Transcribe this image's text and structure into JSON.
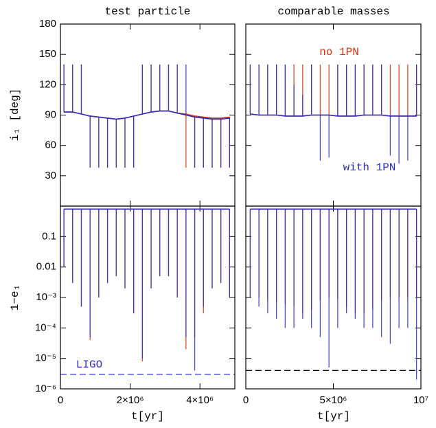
{
  "chart_data": [
    {
      "type": "line",
      "title": "test particle",
      "ylabel": "i₁ [deg]",
      "xlim": [
        0,
        5000000
      ],
      "ylim": [
        0,
        180
      ],
      "yticks": [
        30,
        60,
        90,
        120,
        150,
        180
      ],
      "x": [
        100000,
        350000,
        600000,
        850000,
        1100000,
        1350000,
        1600000,
        1850000,
        2100000,
        2350000,
        2600000,
        2850000,
        3100000,
        3350000,
        3600000,
        3850000,
        4100000,
        4350000,
        4600000,
        4850000
      ],
      "series": [
        {
          "color": "#d03010",
          "values": [
            93,
            93,
            91,
            89,
            88,
            87,
            86,
            87,
            89,
            91,
            93,
            94,
            94,
            92,
            91,
            89,
            88,
            87,
            87,
            88
          ],
          "peaks": [
            140,
            140,
            140,
            38,
            38,
            38,
            38,
            38,
            38,
            140,
            140,
            140,
            140,
            140,
            38,
            38,
            38,
            38,
            38,
            38
          ]
        },
        {
          "color": "#3030c0",
          "values": [
            93,
            93,
            91,
            89,
            88,
            87,
            86,
            87,
            89,
            91,
            93,
            94,
            94,
            92,
            90,
            88,
            87,
            86,
            86,
            87
          ],
          "peaks": [
            140,
            140,
            140,
            38,
            38,
            38,
            38,
            38,
            38,
            140,
            140,
            140,
            140,
            140,
            140,
            38,
            38,
            38,
            38,
            38
          ]
        }
      ]
    },
    {
      "type": "line",
      "title": "comparable masses",
      "xlim": [
        0,
        10000000
      ],
      "ylim": [
        0,
        180
      ],
      "x": [
        250000,
        750000,
        1250000,
        1750000,
        2250000,
        2750000,
        3250000,
        3750000,
        4250000,
        4750000,
        5250000,
        5750000,
        6250000,
        6750000,
        7250000,
        7750000,
        8250000,
        8750000,
        9250000,
        9750000
      ],
      "series": [
        {
          "name": "no 1PN",
          "color": "#d03010",
          "values": [
            91,
            90,
            90,
            90,
            89,
            89,
            89,
            90,
            90,
            90,
            89,
            89,
            89,
            90,
            90,
            90,
            89,
            89,
            89,
            89
          ],
          "peaks": [
            140,
            140,
            140,
            140,
            140,
            140,
            140,
            140,
            140,
            140,
            140,
            140,
            140,
            140,
            140,
            140,
            140,
            140,
            140,
            140
          ]
        },
        {
          "name": "with 1PN",
          "color": "#3030c0",
          "values": [
            91,
            90,
            90,
            90,
            89,
            89,
            89,
            90,
            90,
            90,
            89,
            89,
            89,
            90,
            90,
            90,
            89,
            89,
            89,
            89
          ],
          "peaks": [
            140,
            140,
            140,
            140,
            140,
            120,
            110,
            140,
            45,
            48,
            140,
            140,
            140,
            140,
            140,
            140,
            50,
            42,
            45,
            140
          ]
        }
      ]
    },
    {
      "type": "line",
      "ylabel": "1−e₁",
      "xlabel": "t[yr]",
      "log_y": true,
      "xlim": [
        0,
        5000000
      ],
      "xticks": [
        0,
        {
          "value": 2000000,
          "label": "2×10⁶"
        },
        {
          "value": 4000000,
          "label": "4×10⁶"
        }
      ],
      "ylim": [
        1e-06,
        1
      ],
      "yticks": [
        0.1,
        0.01,
        {
          "value": 0.001,
          "label": "10⁻³"
        },
        {
          "value": 0.0001,
          "label": "10⁻⁴"
        },
        {
          "value": 1e-05,
          "label": "10⁻⁵"
        },
        {
          "value": 1e-06,
          "label": "10⁻⁶"
        }
      ],
      "x": [
        100000,
        350000,
        600000,
        850000,
        1100000,
        1350000,
        1600000,
        1850000,
        2100000,
        2350000,
        2600000,
        2850000,
        3100000,
        3350000,
        3600000,
        3850000,
        4100000,
        4350000,
        4600000,
        4850000
      ],
      "series": [
        {
          "color": "#d03010",
          "values": [
            0.8,
            0.8,
            0.8,
            0.8,
            0.8,
            0.8,
            0.8,
            0.8,
            0.8,
            0.8,
            0.8,
            0.8,
            0.8,
            0.8,
            0.8,
            0.8,
            0.8,
            0.8,
            0.8,
            0.8
          ],
          "peaks": [
            0.01,
            0.003,
            0.0005,
            4e-05,
            0.001,
            0.003,
            0.005,
            0.002,
            0.0003,
            8e-06,
            0.002,
            0.005,
            0.005,
            0.001,
            2e-05,
            5e-05,
            0.0003,
            0.002,
            0.003,
            0.001
          ]
        },
        {
          "color": "#3030c0",
          "values": [
            0.8,
            0.8,
            0.8,
            0.8,
            0.8,
            0.8,
            0.8,
            0.8,
            0.8,
            0.8,
            0.8,
            0.8,
            0.8,
            0.8,
            0.8,
            0.8,
            0.8,
            0.8,
            0.8,
            0.8
          ],
          "peaks": [
            0.01,
            0.003,
            0.0005,
            5e-05,
            0.001,
            0.003,
            0.005,
            0.002,
            0.0003,
            1e-05,
            0.002,
            0.005,
            0.005,
            0.001,
            5e-05,
            4e-06,
            0.0005,
            0.002,
            0.003,
            0.001
          ]
        }
      ],
      "hlines": [
        {
          "value": 3e-06,
          "color": "#3030c0",
          "label": "LIGO"
        }
      ]
    },
    {
      "type": "line",
      "xlabel": "t[yr]",
      "log_y": true,
      "xlim": [
        0,
        10000000
      ],
      "xticks": [
        0,
        {
          "value": 5000000,
          "label": "5×10⁶"
        },
        {
          "value": 10000000,
          "label": "10⁷"
        }
      ],
      "ylim": [
        1e-06,
        1
      ],
      "x": [
        250000,
        750000,
        1250000,
        1750000,
        2250000,
        2750000,
        3250000,
        3750000,
        4250000,
        4750000,
        5250000,
        5750000,
        6250000,
        6750000,
        7250000,
        7750000,
        8250000,
        8750000,
        9250000,
        9750000
      ],
      "series": [
        {
          "color": "#d03010",
          "values": [
            0.8,
            0.8,
            0.8,
            0.8,
            0.8,
            0.8,
            0.8,
            0.8,
            0.8,
            0.8,
            0.8,
            0.8,
            0.8,
            0.8,
            0.8,
            0.8,
            0.8,
            0.8,
            0.8,
            0.8
          ],
          "peaks": [
            0.001,
            0.001,
            0.0008,
            0.0007,
            0.0006,
            0.0005,
            0.0003,
            0.0004,
            0.0008,
            0.001,
            0.0009,
            0.0005,
            0.0003,
            0.0003,
            0.0004,
            0.0008,
            0.001,
            0.001,
            0.001,
            0.001
          ]
        },
        {
          "color": "#3030c0",
          "values": [
            0.8,
            0.8,
            0.8,
            0.8,
            0.8,
            0.8,
            0.8,
            0.8,
            0.8,
            0.8,
            0.8,
            0.8,
            0.8,
            0.8,
            0.8,
            0.8,
            0.8,
            0.8,
            0.8,
            0.8
          ],
          "peaks": [
            0.001,
            0.0005,
            0.0003,
            0.0002,
            0.0001,
            0.0001,
            0.0002,
            0.0001,
            5e-05,
            5e-06,
            0.0001,
            0.0003,
            0.0002,
            0.0001,
            0.0001,
            5e-05,
            3e-05,
            0.0001,
            0.0001,
            2e-06
          ]
        }
      ],
      "hlines": [
        {
          "value": 4e-06,
          "color": "#000000"
        }
      ]
    }
  ]
}
